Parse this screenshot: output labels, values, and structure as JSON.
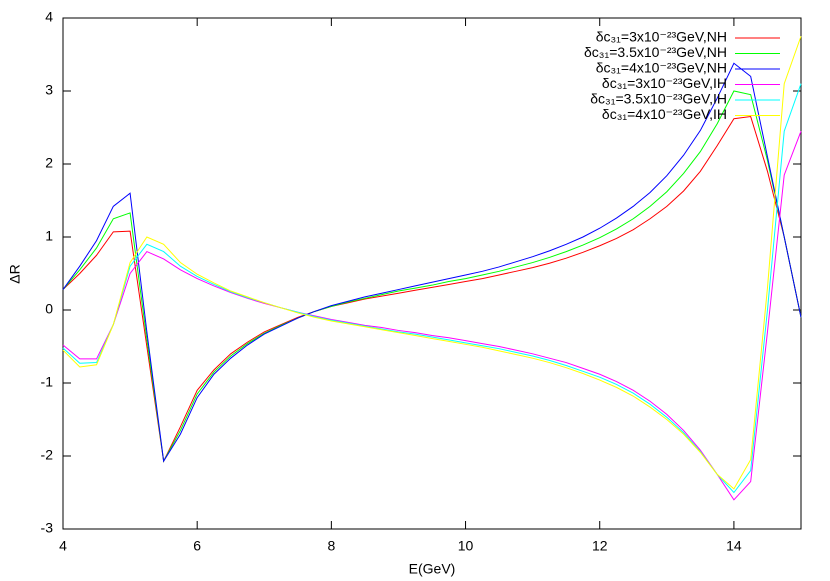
{
  "chart_data": {
    "type": "line",
    "xlabel": "E(GeV)",
    "ylabel": "ΔR",
    "xlim": [
      4,
      15
    ],
    "ylim": [
      -3,
      4
    ],
    "xticks": [
      4,
      6,
      8,
      10,
      12,
      14
    ],
    "yticks": [
      -3,
      -2,
      -1,
      0,
      1,
      2,
      3,
      4
    ],
    "legend": "top-right",
    "x": [
      4,
      4.25,
      4.5,
      4.75,
      5,
      5.25,
      5.5,
      5.75,
      6,
      6.25,
      6.5,
      6.75,
      7,
      7.25,
      7.5,
      7.75,
      8,
      8.25,
      8.5,
      8.75,
      9,
      9.25,
      9.5,
      9.75,
      10,
      10.25,
      10.5,
      10.75,
      11,
      11.25,
      11.5,
      11.75,
      12,
      12.25,
      12.5,
      12.75,
      13,
      13.25,
      13.5,
      13.75,
      14,
      14.25,
      14.5,
      14.75,
      15
    ],
    "series": [
      {
        "name": "δc₃₁=3x10⁻²³GeV,NH",
        "color": "#ff0000",
        "values": [
          0.28,
          0.5,
          0.75,
          1.07,
          1.08,
          -0.5,
          -2.07,
          -1.6,
          -1.1,
          -0.82,
          -0.6,
          -0.44,
          -0.3,
          -0.2,
          -0.1,
          -0.02,
          0.05,
          0.1,
          0.15,
          0.19,
          0.23,
          0.27,
          0.31,
          0.35,
          0.39,
          0.43,
          0.48,
          0.53,
          0.58,
          0.64,
          0.71,
          0.79,
          0.88,
          0.98,
          1.1,
          1.25,
          1.42,
          1.63,
          1.9,
          2.25,
          2.62,
          2.65,
          1.9,
          1.0,
          -0.1
        ]
      },
      {
        "name": "δc₃₁=3.5x10⁻²³GeV,NH",
        "color": "#00ff00",
        "values": [
          0.28,
          0.55,
          0.85,
          1.25,
          1.33,
          -0.4,
          -2.07,
          -1.65,
          -1.15,
          -0.85,
          -0.63,
          -0.46,
          -0.32,
          -0.21,
          -0.11,
          -0.02,
          0.05,
          0.11,
          0.16,
          0.21,
          0.26,
          0.3,
          0.34,
          0.39,
          0.43,
          0.48,
          0.53,
          0.59,
          0.65,
          0.72,
          0.8,
          0.89,
          0.99,
          1.11,
          1.25,
          1.42,
          1.62,
          1.87,
          2.17,
          2.55,
          3.0,
          2.95,
          2.05,
          1.0,
          -0.1
        ]
      },
      {
        "name": "δc₃₁=4x10⁻²³GeV,NH",
        "color": "#0000ff",
        "values": [
          0.28,
          0.6,
          0.95,
          1.42,
          1.6,
          -0.3,
          -2.07,
          -1.7,
          -1.2,
          -0.88,
          -0.66,
          -0.48,
          -0.33,
          -0.22,
          -0.11,
          -0.02,
          0.06,
          0.12,
          0.18,
          0.23,
          0.28,
          0.33,
          0.38,
          0.43,
          0.48,
          0.53,
          0.59,
          0.66,
          0.73,
          0.81,
          0.9,
          1.0,
          1.12,
          1.26,
          1.42,
          1.61,
          1.84,
          2.12,
          2.46,
          2.9,
          3.38,
          3.2,
          2.1,
          1.0,
          -0.1
        ]
      },
      {
        "name": "δc₃₁=3x10⁻²³GeV,IH",
        "color": "#ff00ff",
        "values": [
          -0.48,
          -0.67,
          -0.67,
          -0.2,
          0.5,
          0.8,
          0.7,
          0.55,
          0.43,
          0.33,
          0.24,
          0.16,
          0.09,
          0.03,
          -0.03,
          -0.08,
          -0.13,
          -0.17,
          -0.21,
          -0.24,
          -0.28,
          -0.31,
          -0.35,
          -0.38,
          -0.42,
          -0.46,
          -0.5,
          -0.55,
          -0.6,
          -0.66,
          -0.72,
          -0.8,
          -0.88,
          -0.98,
          -1.1,
          -1.25,
          -1.43,
          -1.65,
          -1.92,
          -2.25,
          -2.6,
          -2.35,
          -0.3,
          1.85,
          2.45
        ]
      },
      {
        "name": "δc₃₁=3.5x10⁻²³GeV,IH",
        "color": "#00ffff",
        "values": [
          -0.52,
          -0.73,
          -0.72,
          -0.2,
          0.6,
          0.9,
          0.8,
          0.6,
          0.46,
          0.35,
          0.25,
          0.17,
          0.1,
          0.03,
          -0.03,
          -0.09,
          -0.14,
          -0.18,
          -0.22,
          -0.26,
          -0.3,
          -0.33,
          -0.37,
          -0.41,
          -0.45,
          -0.49,
          -0.53,
          -0.58,
          -0.63,
          -0.69,
          -0.76,
          -0.84,
          -0.92,
          -1.02,
          -1.14,
          -1.29,
          -1.47,
          -1.68,
          -1.94,
          -2.25,
          -2.5,
          -2.2,
          0.0,
          2.45,
          3.1
        ]
      },
      {
        "name": "δc₃₁=4x10⁻²³GeV,IH",
        "color": "#ffff00",
        "values": [
          -0.55,
          -0.78,
          -0.75,
          -0.2,
          0.65,
          1.0,
          0.9,
          0.65,
          0.49,
          0.37,
          0.26,
          0.18,
          0.1,
          0.03,
          -0.04,
          -0.1,
          -0.15,
          -0.19,
          -0.23,
          -0.27,
          -0.31,
          -0.35,
          -0.39,
          -0.43,
          -0.47,
          -0.51,
          -0.56,
          -0.61,
          -0.66,
          -0.72,
          -0.79,
          -0.87,
          -0.96,
          -1.06,
          -1.18,
          -1.33,
          -1.5,
          -1.7,
          -1.95,
          -2.25,
          -2.45,
          -2.05,
          0.3,
          3.1,
          3.75
        ]
      }
    ]
  }
}
